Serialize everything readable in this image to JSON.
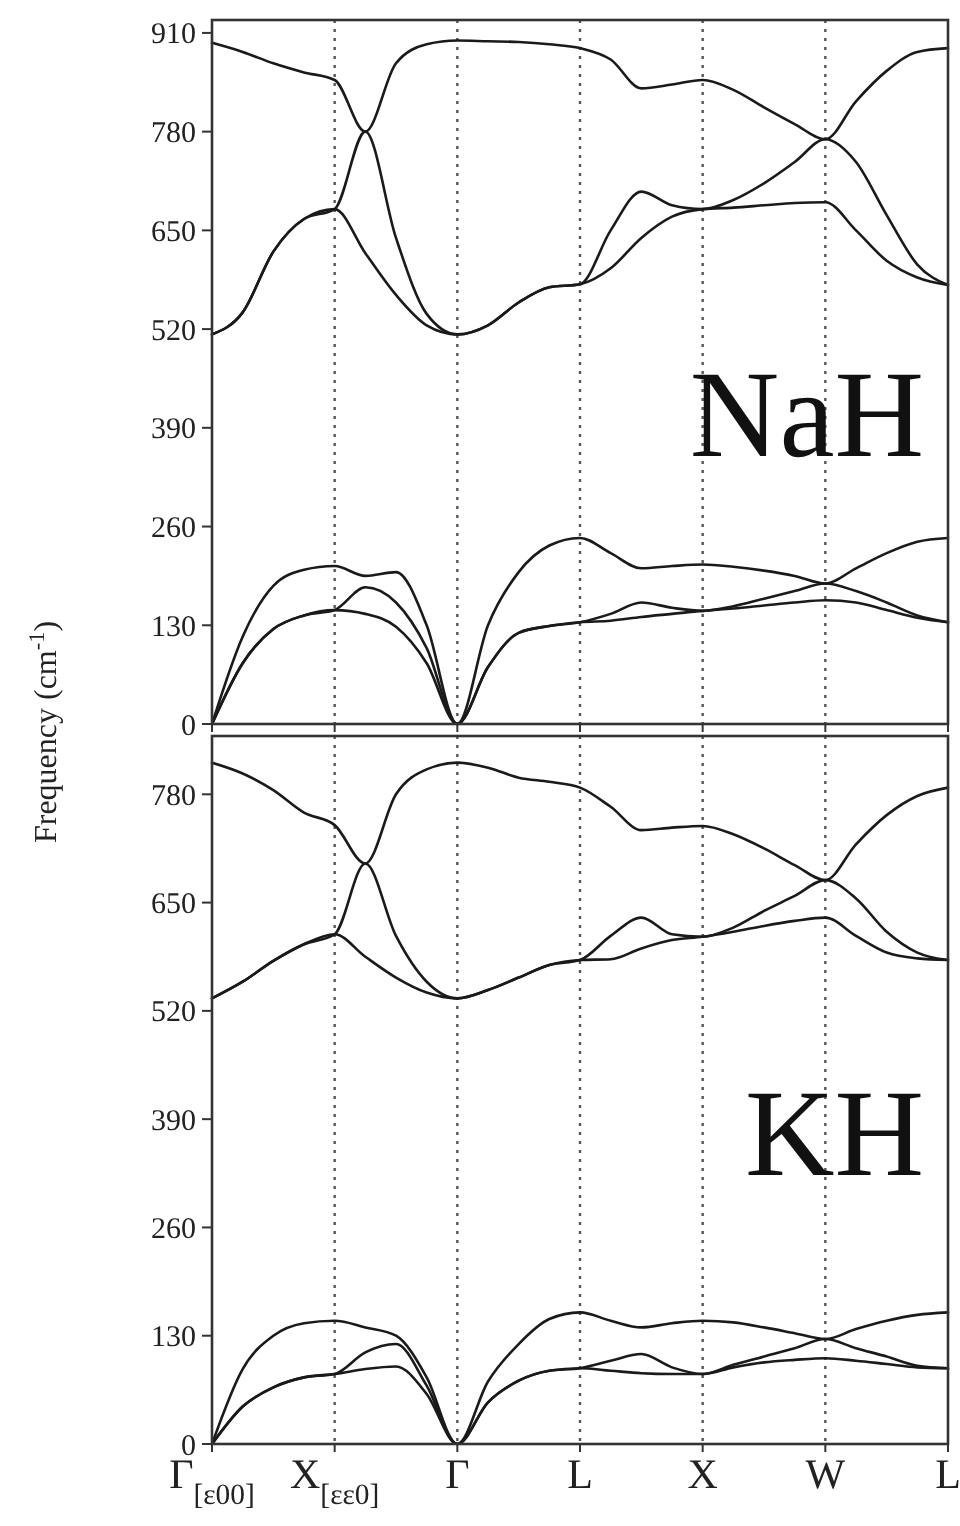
{
  "chart_data": [
    {
      "type": "line",
      "ylabel": "Frequency (cm$^{-1}$)",
      "annotations": [
        "NaH"
      ],
      "categories": [
        "Γ$_{[ε00]}$",
        null,
        null,
        null,
        "X$_{[εε0]}$",
        null,
        null,
        null,
        "Γ",
        null,
        null,
        null,
        "L",
        null,
        null,
        null,
        "X",
        null,
        null,
        null,
        "W",
        null,
        null,
        null,
        "L"
      ],
      "ylim": [
        0,
        927
      ],
      "yticks": [
        0,
        130,
        260,
        390,
        520,
        650,
        780,
        910
      ],
      "tick_labels": "y",
      "grid": false,
      "line_style": "solid",
      "ref_lines": [
        {
          "axis": "x",
          "value": "X$_{[εε0]}$",
          "line_style": "dotted"
        },
        {
          "axis": "x",
          "value": "Γ",
          "line_style": "dotted"
        },
        {
          "axis": "x",
          "value": "L",
          "line_style": "dotted"
        },
        {
          "axis": "x",
          "value": "X",
          "line_style": "dotted"
        },
        {
          "axis": "x",
          "value": "W",
          "line_style": "dotted"
        }
      ],
      "series": [
        {
          "color": "#1a1a1a",
          "values": [
            0,
            80,
            125,
            143,
            150,
            145,
            128,
            80,
            0,
            75,
            120,
            129,
            134,
            136,
            141,
            145,
            149,
            152,
            156,
            160,
            163,
            160,
            150,
            140,
            134
          ]
        },
        {
          "color": "#1a1a1a",
          "values": [
            0,
            80,
            125,
            143,
            150,
            180,
            160,
            100,
            0,
            75,
            120,
            129,
            134,
            145,
            160,
            153,
            149,
            155,
            165,
            175,
            185,
            175,
            160,
            143,
            134
          ]
        },
        {
          "color": "#1a1a1a",
          "values": [
            0,
            115,
            182,
            203,
            208,
            195,
            200,
            130,
            0,
            130,
            200,
            235,
            245,
            225,
            205,
            208,
            210,
            207,
            202,
            195,
            185,
            205,
            225,
            240,
            245
          ]
        },
        {
          "color": "#1a1a1a",
          "values": [
            513,
            542,
            622,
            665,
            678,
            620,
            565,
            525,
            513,
            525,
            555,
            575,
            579,
            600,
            640,
            668,
            678,
            680,
            683,
            686,
            687,
            650,
            610,
            588,
            578
          ]
        },
        {
          "color": "#1a1a1a",
          "values": [
            513,
            542,
            622,
            665,
            678,
            780,
            640,
            540,
            513,
            525,
            555,
            575,
            579,
            650,
            701,
            683,
            678,
            690,
            712,
            740,
            770,
            740,
            670,
            605,
            578
          ]
        },
        {
          "color": "#1a1a1a",
          "values": [
            897,
            885,
            870,
            858,
            848,
            780,
            870,
            895,
            900,
            899,
            898,
            895,
            890,
            875,
            837,
            842,
            848,
            835,
            812,
            790,
            770,
            820,
            860,
            885,
            890
          ]
        }
      ]
    },
    {
      "type": "line",
      "annotations": [
        "KH"
      ],
      "categories": [
        "Γ$_{[ε00]}$",
        null,
        null,
        null,
        "X$_{[εε0]}$",
        null,
        null,
        null,
        "Γ",
        null,
        null,
        null,
        "L",
        null,
        null,
        null,
        "X",
        null,
        null,
        null,
        "W",
        null,
        null,
        null,
        "L"
      ],
      "ylim": [
        0,
        850
      ],
      "yticks": [
        0,
        130,
        260,
        390,
        520,
        650,
        780
      ],
      "grid": false,
      "line_style": "solid",
      "ref_lines": [
        {
          "axis": "x",
          "value": "X$_{[εε0]}$",
          "line_style": "dotted"
        },
        {
          "axis": "x",
          "value": "Γ",
          "line_style": "dotted"
        },
        {
          "axis": "x",
          "value": "L",
          "line_style": "dotted"
        },
        {
          "axis": "x",
          "value": "X",
          "line_style": "dotted"
        },
        {
          "axis": "x",
          "value": "W",
          "line_style": "dotted"
        }
      ],
      "series": [
        {
          "color": "#1a1a1a",
          "values": [
            0,
            45,
            68,
            80,
            84,
            90,
            93,
            60,
            0,
            50,
            76,
            88,
            91,
            88,
            85,
            84,
            84,
            92,
            98,
            101,
            103,
            100,
            96,
            92,
            91
          ]
        },
        {
          "color": "#1a1a1a",
          "values": [
            0,
            45,
            68,
            80,
            84,
            110,
            120,
            70,
            0,
            50,
            76,
            88,
            91,
            100,
            108,
            92,
            84,
            95,
            105,
            115,
            126,
            115,
            105,
            94,
            91
          ]
        },
        {
          "color": "#1a1a1a",
          "values": [
            0,
            90,
            130,
            145,
            148,
            140,
            130,
            80,
            0,
            75,
            120,
            150,
            158,
            148,
            140,
            145,
            148,
            146,
            140,
            133,
            126,
            138,
            148,
            155,
            158
          ]
        },
        {
          "color": "#1a1a1a",
          "values": [
            535,
            555,
            580,
            600,
            612,
            585,
            560,
            542,
            535,
            545,
            560,
            575,
            581,
            582,
            595,
            605,
            609,
            615,
            622,
            628,
            632,
            610,
            590,
            583,
            581
          ]
        },
        {
          "color": "#1a1a1a",
          "values": [
            535,
            555,
            580,
            600,
            612,
            697,
            610,
            555,
            535,
            545,
            560,
            575,
            581,
            610,
            632,
            612,
            609,
            620,
            640,
            658,
            677,
            655,
            615,
            590,
            581
          ]
        },
        {
          "color": "#1a1a1a",
          "values": [
            818,
            805,
            785,
            758,
            743,
            697,
            780,
            810,
            818,
            812,
            800,
            795,
            788,
            765,
            737,
            740,
            742,
            732,
            715,
            695,
            677,
            720,
            755,
            778,
            788
          ]
        }
      ]
    }
  ]
}
